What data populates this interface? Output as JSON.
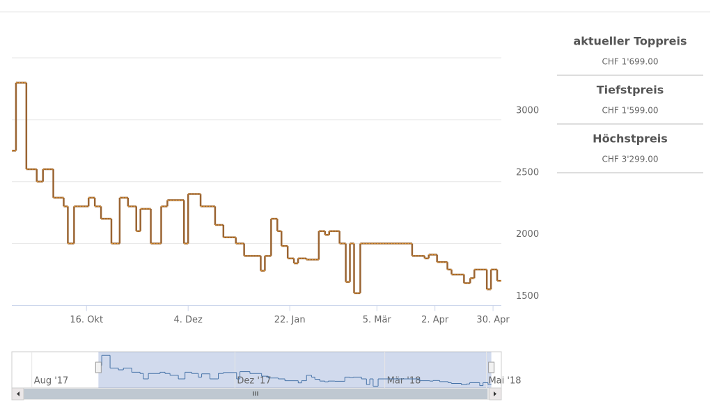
{
  "chart_data": {
    "type": "line",
    "step": true,
    "color": "#9a6432",
    "x": [
      "2017-09-10",
      "2017-09-12",
      "2017-09-17",
      "2017-09-22",
      "2017-09-25",
      "2017-09-30",
      "2017-10-05",
      "2017-10-07",
      "2017-10-10",
      "2017-10-17",
      "2017-10-20",
      "2017-10-23",
      "2017-10-28",
      "2017-11-01",
      "2017-11-05",
      "2017-11-09",
      "2017-11-11",
      "2017-11-16",
      "2017-11-21",
      "2017-11-24",
      "2017-12-02",
      "2017-12-04",
      "2017-12-10",
      "2017-12-17",
      "2017-12-21",
      "2017-12-27",
      "2017-12-31",
      "2018-01-08",
      "2018-01-10",
      "2018-01-13",
      "2018-01-16",
      "2018-01-18",
      "2018-01-21",
      "2018-01-24",
      "2018-01-26",
      "2018-01-30",
      "2018-02-05",
      "2018-02-08",
      "2018-02-10",
      "2018-02-15",
      "2018-02-18",
      "2018-02-20",
      "2018-02-22",
      "2018-02-25",
      "2018-03-22",
      "2018-03-28",
      "2018-03-30",
      "2018-04-03",
      "2018-04-08",
      "2018-04-10",
      "2018-04-16",
      "2018-04-19",
      "2018-04-21",
      "2018-04-27",
      "2018-04-29",
      "2018-05-02"
    ],
    "values": [
      2750,
      3299,
      2600,
      2500,
      2600,
      2370,
      2300,
      2000,
      2300,
      2370,
      2300,
      2200,
      2000,
      2370,
      2300,
      2100,
      2280,
      2000,
      2300,
      2350,
      2000,
      2400,
      2300,
      2150,
      2050,
      2000,
      1900,
      1780,
      1900,
      2200,
      2100,
      1980,
      1880,
      1840,
      1880,
      1870,
      2100,
      2070,
      2100,
      2000,
      1690,
      2000,
      1599,
      2000,
      1900,
      1880,
      1910,
      1850,
      1790,
      1750,
      1680,
      1720,
      1790,
      1630,
      1790,
      1699
    ],
    "xlim": [
      "2017-09-10",
      "2018-05-04"
    ],
    "xticks": [
      {
        "value": "2017-10-16",
        "label": "16. Okt"
      },
      {
        "value": "2017-12-04",
        "label": "4. Dez"
      },
      {
        "value": "2018-01-22",
        "label": "22. Jan"
      },
      {
        "value": "2018-03-05",
        "label": "5. Mär"
      },
      {
        "value": "2018-04-02",
        "label": "2. Apr"
      },
      {
        "value": "2018-04-30",
        "label": "30. Apr"
      }
    ],
    "ylim": [
      1500,
      3500
    ],
    "yticks": [
      1500,
      2000,
      2500,
      3000
    ],
    "grid": true,
    "navigator": {
      "color": "#4572a7",
      "xlim": [
        "2017-07-20",
        "2018-05-10"
      ],
      "xticks": [
        {
          "value": "2017-08-01",
          "label": "Aug '17"
        },
        {
          "value": "2017-12-01",
          "label": "Dez '17"
        },
        {
          "value": "2018-03-01",
          "label": "Mär '18"
        },
        {
          "value": "2018-05-01",
          "label": "Mai '18"
        }
      ]
    }
  },
  "summary": [
    {
      "label": "aktueller Toppreis",
      "value": "CHF 1'699.00"
    },
    {
      "label": "Tiefstpreis",
      "value": "CHF 1'599.00"
    },
    {
      "label": "Höchstpreis",
      "value": "CHF 3'299.00"
    }
  ]
}
